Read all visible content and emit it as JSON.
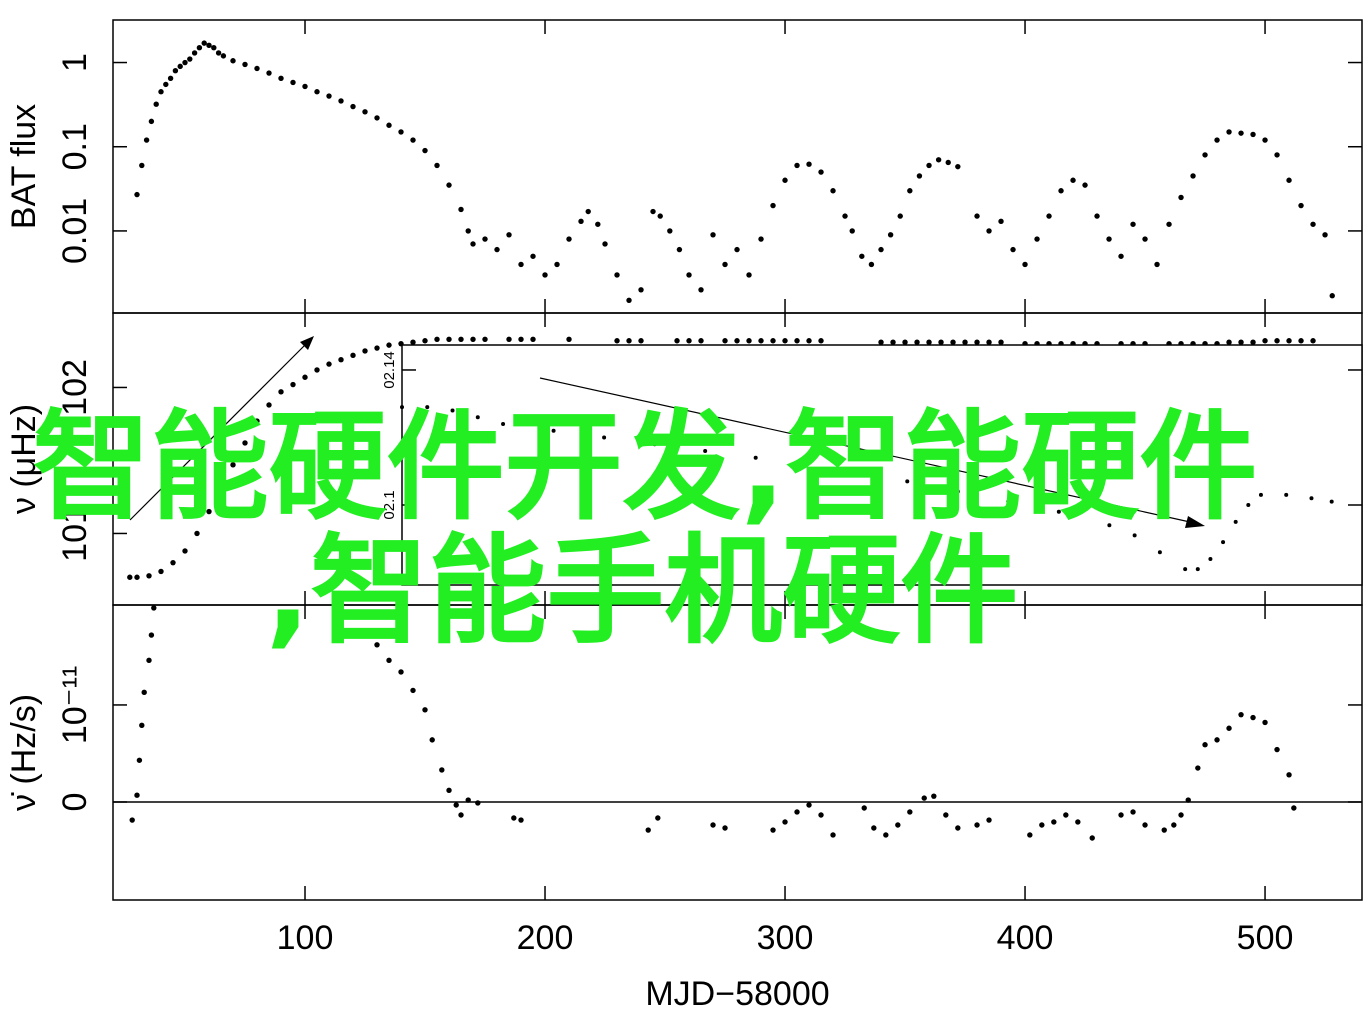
{
  "chart_data": [
    {
      "type": "scatter",
      "y_label": "BAT flux",
      "log_y": true,
      "color": "#000000",
      "xlim": [
        20,
        540.4
      ],
      "ylim": [
        0.00106,
        3.2
      ],
      "yticks": [
        1,
        0.1,
        0.01
      ],
      "x": [
        30,
        32,
        34,
        36,
        38,
        40,
        42,
        44,
        46,
        48,
        50,
        52,
        54,
        56,
        58,
        60,
        62,
        64,
        66,
        70,
        75,
        80,
        85,
        90,
        95,
        100,
        105,
        110,
        115,
        120,
        125,
        130,
        135,
        140,
        145,
        150,
        155,
        160,
        165,
        168,
        170,
        175,
        180,
        185,
        190,
        195,
        200,
        205,
        210,
        215,
        218,
        222,
        225,
        230,
        235,
        240,
        245,
        248,
        252,
        256,
        260,
        265,
        270,
        275,
        280,
        285,
        290,
        295,
        300,
        305,
        310,
        315,
        320,
        325,
        328,
        332,
        336,
        340,
        344,
        348,
        352,
        356,
        360,
        364,
        368,
        372,
        380,
        385,
        390,
        395,
        400,
        405,
        410,
        415,
        420,
        425,
        430,
        435,
        440,
        445,
        450,
        455,
        460,
        465,
        470,
        475,
        480,
        485,
        490,
        495,
        500,
        505,
        510,
        515,
        520,
        525,
        528
      ],
      "values": [
        0.027,
        0.06,
        0.12,
        0.2,
        0.32,
        0.45,
        0.55,
        0.65,
        0.8,
        0.9,
        1.0,
        1.1,
        1.3,
        1.5,
        1.7,
        1.6,
        1.5,
        1.3,
        1.2,
        1.05,
        0.95,
        0.85,
        0.75,
        0.65,
        0.58,
        0.52,
        0.45,
        0.4,
        0.35,
        0.3,
        0.26,
        0.22,
        0.18,
        0.15,
        0.12,
        0.09,
        0.06,
        0.035,
        0.018,
        0.01,
        0.007,
        0.008,
        0.006,
        0.009,
        0.004,
        0.005,
        0.003,
        0.004,
        0.008,
        0.013,
        0.017,
        0.012,
        0.007,
        0.003,
        0.0015,
        0.002,
        0.017,
        0.015,
        0.01,
        0.006,
        0.003,
        0.002,
        0.009,
        0.004,
        0.006,
        0.003,
        0.008,
        0.02,
        0.04,
        0.06,
        0.062,
        0.05,
        0.03,
        0.015,
        0.01,
        0.005,
        0.004,
        0.006,
        0.009,
        0.015,
        0.03,
        0.045,
        0.06,
        0.07,
        0.065,
        0.058,
        0.015,
        0.01,
        0.013,
        0.006,
        0.004,
        0.008,
        0.015,
        0.03,
        0.04,
        0.035,
        0.015,
        0.008,
        0.005,
        0.012,
        0.008,
        0.004,
        0.012,
        0.025,
        0.045,
        0.08,
        0.12,
        0.15,
        0.145,
        0.14,
        0.12,
        0.08,
        0.04,
        0.02,
        0.012,
        0.009,
        0.0017
      ]
    },
    {
      "type": "scatter",
      "y_label": "ν (μHz)",
      "color": "#000000",
      "xlim": [
        20,
        540.4
      ],
      "ylim": [
        100.51,
        102.51
      ],
      "yticks": [
        102,
        101
      ],
      "x": [
        27,
        30,
        35,
        40,
        45,
        50,
        55,
        60,
        65,
        70,
        75,
        80,
        85,
        90,
        95,
        100,
        105,
        110,
        115,
        120,
        125,
        130,
        135,
        140,
        145,
        150,
        155,
        160,
        165,
        170,
        175,
        185,
        190,
        195,
        210,
        230,
        235,
        240,
        255,
        260,
        265,
        275,
        280,
        285,
        290,
        295,
        300,
        305,
        310,
        315,
        340,
        345,
        350,
        355,
        360,
        365,
        370,
        375,
        380,
        385,
        390,
        400,
        405,
        410,
        415,
        420,
        425,
        430,
        440,
        445,
        450,
        460,
        465,
        470,
        475,
        480,
        485,
        490,
        495,
        500,
        505,
        510,
        515,
        520
      ],
      "values": [
        100.7,
        100.7,
        100.71,
        100.74,
        100.8,
        100.88,
        101.0,
        101.15,
        101.3,
        101.47,
        101.62,
        101.77,
        101.88,
        101.97,
        102.02,
        102.07,
        102.12,
        102.16,
        102.19,
        102.22,
        102.25,
        102.27,
        102.29,
        102.3,
        102.31,
        102.32,
        102.33,
        102.33,
        102.33,
        102.33,
        102.33,
        102.33,
        102.33,
        102.33,
        102.33,
        102.32,
        102.32,
        102.32,
        102.32,
        102.32,
        102.32,
        102.32,
        102.32,
        102.32,
        102.32,
        102.32,
        102.32,
        102.32,
        102.32,
        102.32,
        102.31,
        102.31,
        102.31,
        102.31,
        102.31,
        102.31,
        102.31,
        102.31,
        102.31,
        102.31,
        102.31,
        102.3,
        102.3,
        102.3,
        102.3,
        102.3,
        102.3,
        102.3,
        102.3,
        102.3,
        102.3,
        102.3,
        102.3,
        102.3,
        102.3,
        102.3,
        102.31,
        102.31,
        102.31,
        102.32,
        102.32,
        102.32,
        102.32,
        102.32
      ]
    },
    {
      "type": "scatter",
      "y_label": "ν̇ (Hz/s)",
      "x_label": "MJD−58000",
      "color": "#000000",
      "xlim": [
        20,
        540.4
      ],
      "ylim": [
        -1.01e-11,
        2.03e-11
      ],
      "xticks": [
        100,
        200,
        300,
        400,
        500
      ],
      "yticks": [
        0,
        {
          "value": 1e-11,
          "label": "10⁻¹¹"
        }
      ],
      "x": [
        28,
        30,
        31,
        32,
        33,
        35,
        36,
        37,
        130,
        135,
        140,
        145,
        150,
        153,
        157,
        160,
        163,
        165,
        168,
        172,
        187,
        190,
        243,
        247,
        270,
        275,
        295,
        300,
        305,
        310,
        315,
        320,
        333,
        337,
        342,
        347,
        352,
        358,
        362,
        367,
        372,
        380,
        385,
        402,
        407,
        412,
        417,
        422,
        428,
        440,
        445,
        450,
        458,
        462,
        465,
        468,
        472,
        475,
        480,
        485,
        490,
        495,
        500,
        505,
        510,
        512
      ],
      "values": [
        -1.86e-12,
        7e-13,
        4.3e-12,
        7.9e-12,
        1.13e-11,
        1.46e-11,
        1.72e-11,
        2e-11,
        1.62e-11,
        1.46e-11,
        1.34e-11,
        1.15e-11,
        9.5e-12,
        6.4e-12,
        3.3e-12,
        1.2e-12,
        -3.1e-13,
        -1.34e-12,
        2e-13,
        -1e-13,
        -1.65e-12,
        -1.86e-12,
        -2.89e-12,
        -1.65e-12,
        -2.37e-12,
        -2.68e-12,
        -2.89e-12,
        -2.06e-12,
        -1.03e-12,
        -3.1e-13,
        -1.34e-12,
        -3.4e-12,
        -6.2e-13,
        -2.68e-12,
        -3.4e-12,
        -2.37e-12,
        -1.03e-12,
        4e-13,
        6e-13,
        -1.34e-12,
        -2.68e-12,
        -2.37e-12,
        -1.86e-12,
        -3.4e-12,
        -2.37e-12,
        -2.06e-12,
        -1.34e-12,
        -2.06e-12,
        -3.71e-12,
        -1.34e-12,
        -1.03e-12,
        -2.37e-12,
        -2.89e-12,
        -2.37e-12,
        -1.34e-12,
        2e-13,
        3.5e-12,
        5.9e-12,
        6.4e-12,
        7.6e-12,
        9e-12,
        8.7e-12,
        8.2e-12,
        5.4e-12,
        2.8e-12,
        -6.2e-13
      ]
    },
    {
      "type": "scatter",
      "color": "#000000",
      "xlim": [
        160,
        540
      ],
      "ylim": [
        102.0763,
        102.1474
      ],
      "yticks": [
        {
          "value": 102.14,
          "label": "02.14"
        },
        {
          "value": 102.1,
          "label": "02.1"
        }
      ],
      "x": [
        160,
        170,
        180,
        190,
        200,
        220,
        240,
        260,
        280,
        300,
        320,
        340,
        360,
        380,
        400,
        420,
        440,
        450,
        460,
        470,
        475,
        480,
        485,
        490,
        495,
        500,
        510,
        520,
        528
      ],
      "values": [
        102.129,
        102.129,
        102.128,
        102.126,
        102.124,
        102.122,
        102.12,
        102.118,
        102.116,
        102.114,
        102.112,
        102.11,
        102.107,
        102.104,
        102.101,
        102.098,
        102.094,
        102.091,
        102.086,
        102.081,
        102.081,
        102.084,
        102.089,
        102.095,
        102.1,
        102.103,
        102.103,
        102.102,
        102.101
      ]
    }
  ],
  "overlay": {
    "line1": "智能硬件开发,智能硬件",
    "line2": ",智能手机硬件"
  }
}
